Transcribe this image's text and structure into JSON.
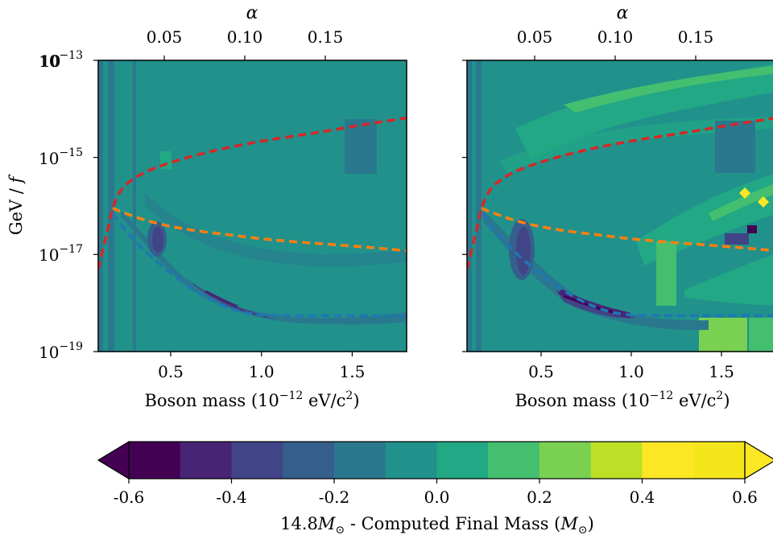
{
  "chart_data": [
    {
      "type": "heatmap",
      "panel": "left",
      "xlabel": "Boson mass (10⁻¹² eV/c²)",
      "ylabel": "GeV / f",
      "top_xlabel": "α",
      "xlim": [
        0.1,
        1.8
      ],
      "ylim": [
        1e-19,
        1e-13
      ],
      "yscale": "log",
      "x_ticks": [
        0.5,
        1.0,
        1.5
      ],
      "x_tick_labels": [
        "0.5",
        "1.0",
        "1.5"
      ],
      "top_ticks": [
        0.05,
        0.1,
        0.15
      ],
      "top_tick_labels": [
        "0.05",
        "0.10",
        "0.15"
      ],
      "y_ticks": [
        1e-13,
        1e-15,
        1e-17,
        1e-19
      ],
      "y_tick_labels": [
        "10⁻¹³",
        "10⁻¹⁵",
        "10⁻¹⁷",
        "10⁻¹⁹"
      ],
      "lines": [
        {
          "color": "#d62728",
          "x": [
            0.1,
            0.15,
            0.2,
            0.3,
            0.45,
            0.7,
            1.0,
            1.3,
            1.6,
            1.8
          ],
          "y": [
            5e-18,
            3e-17,
            1.8e-16,
            4e-16,
            7e-16,
            1.3e-15,
            2.2e-15,
            3.2e-15,
            5e-15,
            6.5e-15
          ]
        },
        {
          "color": "#ff7f0e",
          "x": [
            0.18,
            0.25,
            0.4,
            0.6,
            0.8,
            1.0,
            1.2,
            1.5,
            1.8
          ],
          "y": [
            9e-17,
            7e-17,
            4.5e-17,
            3.2e-17,
            2.6e-17,
            2.1e-17,
            1.8e-17,
            1.5e-17,
            1.2e-17
          ]
        },
        {
          "color": "#1f77b4",
          "x": [
            0.18,
            0.3,
            0.5,
            0.7,
            0.9,
            1.1,
            1.4,
            1.8
          ],
          "y": [
            7e-17,
            1.8e-17,
            4e-18,
            1.2e-18,
            6e-19,
            5.5e-19,
            5.5e-19,
            5.5e-19
          ]
        }
      ],
      "contour_regions": [
        {
          "level": -0.2,
          "desc": "strip",
          "x": [
            0.1,
            0.27
          ],
          "y": [
            1e-19,
            1e-13
          ]
        },
        {
          "level": 0.0,
          "desc": "background",
          "x": [
            0.1,
            1.8
          ],
          "y": [
            1e-19,
            1e-13
          ]
        },
        {
          "level": -0.6,
          "desc": "feature",
          "x": [
            0.4,
            0.45
          ],
          "y": [
            1.5e-17,
            3e-17
          ]
        },
        {
          "level": 0.2,
          "desc": "feature",
          "x": [
            0.7,
            1.5
          ],
          "y": [
            2e-15,
            6e-15
          ]
        }
      ]
    },
    {
      "type": "heatmap",
      "panel": "right",
      "xlabel": "Boson mass (10⁻¹² eV/c²)",
      "top_xlabel": "α",
      "xlim": [
        0.1,
        1.8
      ],
      "ylim": [
        1e-19,
        1e-13
      ],
      "yscale": "log",
      "x_ticks": [
        0.5,
        1.0,
        1.5
      ],
      "x_tick_labels": [
        "0.5",
        "1.0",
        "1.5"
      ],
      "top_ticks": [
        0.05,
        0.1,
        0.15
      ],
      "top_tick_labels": [
        "0.05",
        "0.10",
        "0.15"
      ],
      "lines": [
        {
          "color": "#d62728",
          "x": [
            0.1,
            0.15,
            0.2,
            0.3,
            0.45,
            0.7,
            1.0,
            1.3,
            1.6,
            1.8
          ],
          "y": [
            5e-18,
            3e-17,
            1.8e-16,
            4e-16,
            7e-16,
            1.3e-15,
            2.2e-15,
            3.2e-15,
            5e-15,
            6.5e-15
          ]
        },
        {
          "color": "#ff7f0e",
          "x": [
            0.18,
            0.25,
            0.4,
            0.6,
            0.8,
            1.0,
            1.2,
            1.5,
            1.8
          ],
          "y": [
            9e-17,
            7e-17,
            4.5e-17,
            3.2e-17,
            2.6e-17,
            2.1e-17,
            1.8e-17,
            1.5e-17,
            1.2e-17
          ]
        },
        {
          "color": "#1f77b4",
          "x": [
            0.18,
            0.3,
            0.5,
            0.7,
            0.9,
            1.1,
            1.4,
            1.8
          ],
          "y": [
            7e-17,
            1.8e-17,
            4e-18,
            1.2e-18,
            6e-19,
            5.5e-19,
            5.5e-19,
            5.5e-19
          ]
        }
      ],
      "contour_regions": [
        {
          "level": 0.0,
          "desc": "background",
          "x": [
            0.1,
            1.8
          ],
          "y": [
            1e-19,
            1e-13
          ]
        },
        {
          "level": 0.2,
          "desc": "upper band",
          "x": [
            0.3,
            1.8
          ],
          "y": [
            2e-15,
            8e-14
          ]
        },
        {
          "level": 0.4,
          "desc": "diagonal band",
          "x": [
            1.0,
            1.8
          ],
          "y": [
            5e-17,
            5e-16
          ]
        },
        {
          "level": 0.6,
          "desc": "yellow spots",
          "x": [
            1.6,
            1.75
          ],
          "y": [
            1e-16,
            2e-16
          ]
        },
        {
          "level": -0.6,
          "desc": "purple trough",
          "x": [
            0.55,
            0.9
          ],
          "y": [
            8e-19,
            3e-18
          ]
        },
        {
          "level": 0.3,
          "desc": "bottom block",
          "x": [
            1.35,
            1.8
          ],
          "y": [
            1e-19,
            5e-19
          ]
        }
      ]
    }
  ],
  "colorbar": {
    "label": "14.8M☉ - Computed Final Mass (M☉)",
    "ticks": [
      "-0.6",
      "-0.4",
      "-0.2",
      "0.0",
      "0.2",
      "0.4",
      "0.6"
    ],
    "levels": [
      -0.6,
      -0.5,
      -0.4,
      -0.3,
      -0.2,
      -0.1,
      0.0,
      0.1,
      0.2,
      0.3,
      0.4,
      0.5,
      0.6
    ],
    "colors": [
      "#440154",
      "#482475",
      "#414487",
      "#355f8d",
      "#2a788e",
      "#21918c",
      "#22a884",
      "#44bf70",
      "#7ad151",
      "#bddf26",
      "#fde725",
      "#f5e61b"
    ],
    "extend": "both"
  },
  "colors": {
    "red_line": "#d62728",
    "orange_line": "#ff7f0e",
    "blue_line": "#1f77b4"
  }
}
